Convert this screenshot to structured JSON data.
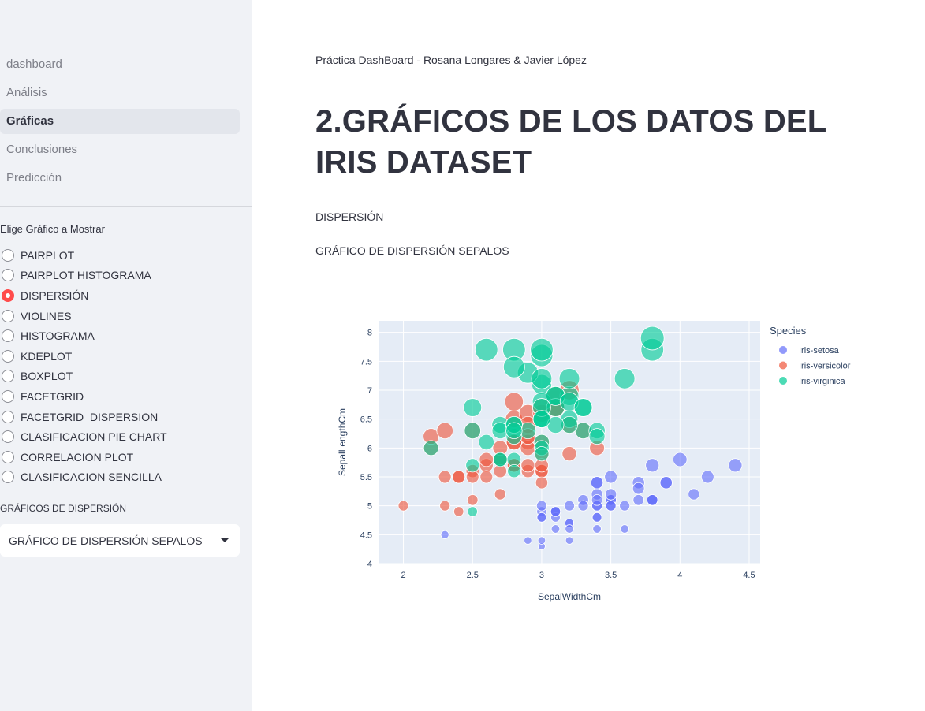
{
  "sidebar": {
    "nav": [
      {
        "label": "dashboard",
        "active": false
      },
      {
        "label": "Análisis",
        "active": false
      },
      {
        "label": "Gráficas",
        "active": true
      },
      {
        "label": "Conclusiones",
        "active": false
      },
      {
        "label": "Predicción",
        "active": false
      }
    ],
    "radio_label": "Elige Gráfico a Mostrar",
    "radio_options": [
      "PAIRPLOT",
      "PAIRPLOT HISTOGRAMA",
      "DISPERSIÓN",
      "VIOLINES",
      "HISTOGRAMA",
      "KDEPLOT",
      "BOXPLOT",
      "FACETGRID",
      "FACETGRID_DISPERSION",
      "CLASIFICACION PIE CHART",
      "CORRELACION PLOT",
      "CLASIFICACION SENCILLA"
    ],
    "radio_selected": "DISPERSIÓN",
    "select_label": "GRÁFICOS DE DISPERSIÓN",
    "select_value": "GRÁFICO DE DISPERSIÓN SEPALOS"
  },
  "main": {
    "subtitle": "Práctica DashBoard - Rosana Longares & Javier López",
    "title": "2.GRÁFICOS DE LOS DATOS DEL IRIS DATASET",
    "section": "DISPERSIÓN",
    "chart_heading": "GRÁFICO DE DISPERSIÓN SEPALOS"
  },
  "chart_data": {
    "type": "scatter",
    "xlabel": "SepalWidthCm",
    "ylabel": "SepalLengthCm",
    "xlim": [
      1.82,
      4.58
    ],
    "ylim": [
      4.0,
      8.2
    ],
    "xticks": [
      2,
      2.5,
      3,
      3.5,
      4,
      4.5
    ],
    "yticks": [
      4,
      4.5,
      5,
      5.5,
      6,
      6.5,
      7,
      7.5,
      8
    ],
    "legend_title": "Species",
    "legend_position": "right",
    "grid": true,
    "series": [
      {
        "name": "Iris-setosa",
        "color": "#636efa",
        "points": [
          [
            3.5,
            5.1
          ],
          [
            3.0,
            4.9
          ],
          [
            3.2,
            4.7
          ],
          [
            3.1,
            4.6
          ],
          [
            3.6,
            5.0
          ],
          [
            3.9,
            5.4
          ],
          [
            3.4,
            4.6
          ],
          [
            3.4,
            5.0
          ],
          [
            2.9,
            4.4
          ],
          [
            3.1,
            4.9
          ],
          [
            3.7,
            5.4
          ],
          [
            3.4,
            4.8
          ],
          [
            3.0,
            4.8
          ],
          [
            3.0,
            4.3
          ],
          [
            4.0,
            5.8
          ],
          [
            4.4,
            5.7
          ],
          [
            3.9,
            5.4
          ],
          [
            3.5,
            5.1
          ],
          [
            3.8,
            5.7
          ],
          [
            3.8,
            5.1
          ],
          [
            3.4,
            5.4
          ],
          [
            3.7,
            5.1
          ],
          [
            3.6,
            4.6
          ],
          [
            3.3,
            5.1
          ],
          [
            3.4,
            4.8
          ],
          [
            3.0,
            5.0
          ],
          [
            3.4,
            5.0
          ],
          [
            3.5,
            5.2
          ],
          [
            3.4,
            5.2
          ],
          [
            3.2,
            4.7
          ],
          [
            3.1,
            4.8
          ],
          [
            3.4,
            5.4
          ],
          [
            4.1,
            5.2
          ],
          [
            4.2,
            5.5
          ],
          [
            3.1,
            4.9
          ],
          [
            3.2,
            5.0
          ],
          [
            3.5,
            5.5
          ],
          [
            3.1,
            4.9
          ],
          [
            3.0,
            4.4
          ],
          [
            3.4,
            5.1
          ],
          [
            3.5,
            5.0
          ],
          [
            2.3,
            4.5
          ],
          [
            3.2,
            4.4
          ],
          [
            3.5,
            5.0
          ],
          [
            3.8,
            5.1
          ],
          [
            3.0,
            4.8
          ],
          [
            3.8,
            5.1
          ],
          [
            3.2,
            4.6
          ],
          [
            3.7,
            5.3
          ],
          [
            3.3,
            5.0
          ]
        ]
      },
      {
        "name": "Iris-versicolor",
        "color": "#ef553b",
        "points": [
          [
            3.2,
            7.0
          ],
          [
            3.2,
            6.4
          ],
          [
            3.1,
            6.9
          ],
          [
            2.3,
            5.5
          ],
          [
            2.8,
            6.5
          ],
          [
            2.8,
            5.7
          ],
          [
            3.3,
            6.3
          ],
          [
            2.4,
            4.9
          ],
          [
            2.9,
            6.6
          ],
          [
            2.7,
            5.2
          ],
          [
            2.0,
            5.0
          ],
          [
            3.0,
            5.9
          ],
          [
            2.2,
            6.0
          ],
          [
            2.9,
            6.1
          ],
          [
            2.9,
            5.6
          ],
          [
            3.1,
            6.7
          ],
          [
            3.0,
            5.6
          ],
          [
            2.7,
            5.8
          ],
          [
            2.2,
            6.2
          ],
          [
            2.5,
            5.6
          ],
          [
            3.2,
            5.9
          ],
          [
            2.8,
            6.1
          ],
          [
            2.5,
            6.3
          ],
          [
            2.8,
            6.1
          ],
          [
            2.9,
            6.4
          ],
          [
            3.0,
            6.6
          ],
          [
            2.8,
            6.8
          ],
          [
            3.0,
            6.7
          ],
          [
            2.9,
            6.0
          ],
          [
            2.6,
            5.7
          ],
          [
            2.4,
            5.5
          ],
          [
            2.4,
            5.5
          ],
          [
            2.7,
            5.8
          ],
          [
            2.7,
            6.0
          ],
          [
            3.0,
            5.4
          ],
          [
            3.4,
            6.0
          ],
          [
            3.1,
            6.7
          ],
          [
            2.3,
            6.3
          ],
          [
            3.0,
            5.6
          ],
          [
            2.5,
            5.5
          ],
          [
            2.6,
            5.5
          ],
          [
            3.0,
            6.1
          ],
          [
            2.6,
            5.8
          ],
          [
            2.3,
            5.0
          ],
          [
            2.7,
            5.6
          ],
          [
            3.0,
            5.7
          ],
          [
            2.9,
            5.7
          ],
          [
            2.9,
            6.2
          ],
          [
            2.5,
            5.1
          ],
          [
            2.8,
            5.7
          ]
        ]
      },
      {
        "name": "Iris-virginica",
        "color": "#00cc96",
        "points": [
          [
            3.3,
            6.3
          ],
          [
            2.7,
            5.8
          ],
          [
            3.0,
            7.1
          ],
          [
            2.9,
            6.3
          ],
          [
            3.0,
            6.5
          ],
          [
            3.0,
            7.6
          ],
          [
            2.5,
            4.9
          ],
          [
            2.9,
            7.3
          ],
          [
            2.5,
            6.7
          ],
          [
            3.6,
            7.2
          ],
          [
            3.2,
            6.5
          ],
          [
            2.7,
            6.4
          ],
          [
            3.0,
            6.8
          ],
          [
            2.5,
            5.7
          ],
          [
            2.8,
            5.8
          ],
          [
            3.2,
            6.4
          ],
          [
            3.0,
            6.5
          ],
          [
            3.8,
            7.7
          ],
          [
            2.6,
            7.7
          ],
          [
            2.2,
            6.0
          ],
          [
            3.2,
            6.9
          ],
          [
            2.8,
            5.6
          ],
          [
            2.8,
            7.7
          ],
          [
            2.7,
            6.3
          ],
          [
            3.3,
            6.7
          ],
          [
            3.2,
            7.2
          ],
          [
            2.8,
            6.2
          ],
          [
            3.0,
            6.1
          ],
          [
            2.8,
            6.4
          ],
          [
            3.0,
            7.2
          ],
          [
            2.8,
            7.4
          ],
          [
            3.8,
            7.9
          ],
          [
            2.8,
            6.4
          ],
          [
            2.8,
            6.3
          ],
          [
            2.6,
            6.1
          ],
          [
            3.0,
            7.7
          ],
          [
            3.4,
            6.3
          ],
          [
            3.1,
            6.4
          ],
          [
            3.0,
            6.0
          ],
          [
            3.1,
            6.9
          ],
          [
            3.1,
            6.7
          ],
          [
            3.1,
            6.9
          ],
          [
            2.7,
            5.8
          ],
          [
            3.2,
            6.8
          ],
          [
            3.3,
            6.7
          ],
          [
            3.0,
            6.7
          ],
          [
            2.5,
            6.3
          ],
          [
            3.0,
            6.5
          ],
          [
            3.4,
            6.2
          ],
          [
            3.0,
            5.9
          ]
        ]
      }
    ]
  }
}
